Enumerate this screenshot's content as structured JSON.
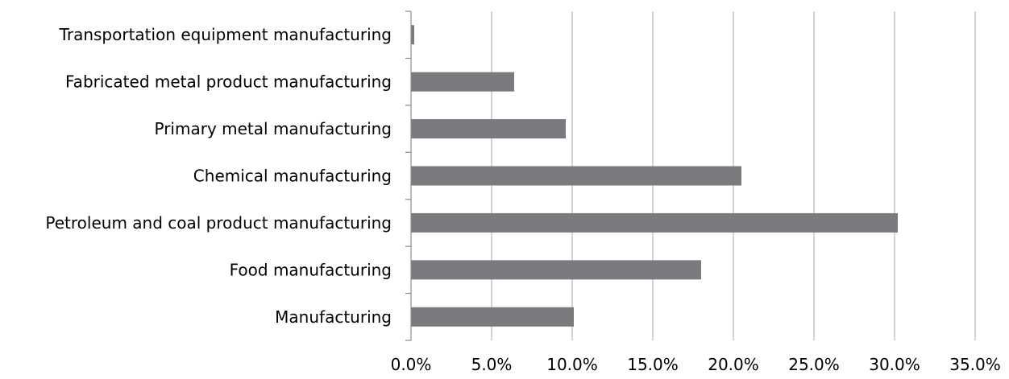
{
  "chart_data": {
    "type": "bar",
    "orientation": "horizontal",
    "categories": [
      "Transportation equipment manufacturing",
      "Fabricated metal product manufacturing",
      "Primary metal manufacturing",
      "Chemical manufacturing",
      "Petroleum and coal product manufacturing",
      "Food manufacturing",
      "Manufacturing"
    ],
    "values": [
      0.2,
      6.4,
      9.6,
      20.5,
      30.2,
      18.0,
      10.1
    ],
    "xlim": [
      0,
      35
    ],
    "x_ticks": [
      0,
      5,
      10,
      15,
      20,
      25,
      30,
      35
    ],
    "x_tick_labels": [
      "0.0%",
      "5.0%",
      "10.0%",
      "15.0%",
      "20.0%",
      "25.0%",
      "30.0%",
      "35.0%"
    ],
    "grid": true,
    "bar_color": "#7a7b7e",
    "title": "",
    "xlabel": "",
    "ylabel": ""
  }
}
